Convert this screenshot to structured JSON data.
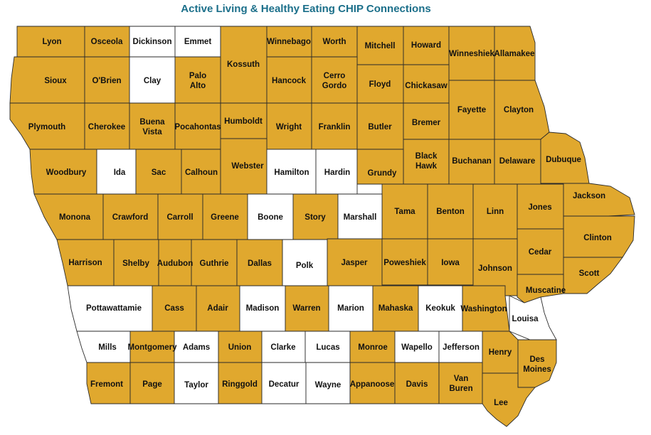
{
  "title": "Active Living & Healthy Eating CHIP Connections",
  "colors": {
    "active": "#E0A82E",
    "inactive": "#FFFFFF",
    "border": "#2A2A2A"
  },
  "counties": [
    {
      "name": "Lyon",
      "active": true
    },
    {
      "name": "Osceola",
      "active": true
    },
    {
      "name": "Dickinson",
      "active": false
    },
    {
      "name": "Emmet",
      "active": false
    },
    {
      "name": "Kossuth",
      "active": true
    },
    {
      "name": "Winnebago",
      "active": true
    },
    {
      "name": "Worth",
      "active": true
    },
    {
      "name": "Mitchell",
      "active": true
    },
    {
      "name": "Howard",
      "active": true
    },
    {
      "name": "Winneshiek",
      "active": true
    },
    {
      "name": "Allamakee",
      "active": true
    },
    {
      "name": "Sioux",
      "active": true
    },
    {
      "name": "O'Brien",
      "active": true
    },
    {
      "name": "Clay",
      "active": false
    },
    {
      "name": "Palo Alto",
      "active": true
    },
    {
      "name": "Hancock",
      "active": true
    },
    {
      "name": "Cerro Gordo",
      "active": true
    },
    {
      "name": "Floyd",
      "active": true
    },
    {
      "name": "Chickasaw",
      "active": true
    },
    {
      "name": "Fayette",
      "active": true
    },
    {
      "name": "Clayton",
      "active": true
    },
    {
      "name": "Plymouth",
      "active": true
    },
    {
      "name": "Cherokee",
      "active": true
    },
    {
      "name": "Buena Vista",
      "active": true
    },
    {
      "name": "Pocahontas",
      "active": true
    },
    {
      "name": "Humboldt",
      "active": true
    },
    {
      "name": "Wright",
      "active": true
    },
    {
      "name": "Franklin",
      "active": true
    },
    {
      "name": "Butler",
      "active": true
    },
    {
      "name": "Bremer",
      "active": true
    },
    {
      "name": "Black Hawk",
      "active": true
    },
    {
      "name": "Buchanan",
      "active": true
    },
    {
      "name": "Delaware",
      "active": true
    },
    {
      "name": "Dubuque",
      "active": true
    },
    {
      "name": "Woodbury",
      "active": true
    },
    {
      "name": "Ida",
      "active": false
    },
    {
      "name": "Sac",
      "active": true
    },
    {
      "name": "Calhoun",
      "active": true
    },
    {
      "name": "Webster",
      "active": true
    },
    {
      "name": "Hamilton",
      "active": false
    },
    {
      "name": "Hardin",
      "active": false
    },
    {
      "name": "Grundy",
      "active": true
    },
    {
      "name": "Tama",
      "active": true
    },
    {
      "name": "Benton",
      "active": true
    },
    {
      "name": "Linn",
      "active": true
    },
    {
      "name": "Jones",
      "active": true
    },
    {
      "name": "Jackson",
      "active": true
    },
    {
      "name": "Clinton",
      "active": true
    },
    {
      "name": "Monona",
      "active": true
    },
    {
      "name": "Crawford",
      "active": true
    },
    {
      "name": "Carroll",
      "active": true
    },
    {
      "name": "Greene",
      "active": true
    },
    {
      "name": "Boone",
      "active": false
    },
    {
      "name": "Story",
      "active": true
    },
    {
      "name": "Marshall",
      "active": false
    },
    {
      "name": "Cedar",
      "active": true
    },
    {
      "name": "Scott",
      "active": true
    },
    {
      "name": "Harrison",
      "active": true
    },
    {
      "name": "Shelby",
      "active": true
    },
    {
      "name": "Audubon",
      "active": true
    },
    {
      "name": "Guthrie",
      "active": true
    },
    {
      "name": "Dallas",
      "active": true
    },
    {
      "name": "Polk",
      "active": false
    },
    {
      "name": "Jasper",
      "active": true
    },
    {
      "name": "Poweshiek",
      "active": true
    },
    {
      "name": "Iowa",
      "active": true
    },
    {
      "name": "Johnson",
      "active": true
    },
    {
      "name": "Muscatine",
      "active": true
    },
    {
      "name": "Pottawattamie",
      "active": false
    },
    {
      "name": "Cass",
      "active": true
    },
    {
      "name": "Adair",
      "active": true
    },
    {
      "name": "Madison",
      "active": false
    },
    {
      "name": "Warren",
      "active": true
    },
    {
      "name": "Marion",
      "active": false
    },
    {
      "name": "Mahaska",
      "active": true
    },
    {
      "name": "Keokuk",
      "active": false
    },
    {
      "name": "Washington",
      "active": true
    },
    {
      "name": "Louisa",
      "active": false
    },
    {
      "name": "Mills",
      "active": false
    },
    {
      "name": "Montgomery",
      "active": true
    },
    {
      "name": "Adams",
      "active": false
    },
    {
      "name": "Union",
      "active": true
    },
    {
      "name": "Clarke",
      "active": false
    },
    {
      "name": "Lucas",
      "active": false
    },
    {
      "name": "Monroe",
      "active": true
    },
    {
      "name": "Wapello",
      "active": false
    },
    {
      "name": "Jefferson",
      "active": false
    },
    {
      "name": "Henry",
      "active": true
    },
    {
      "name": "Des Moines",
      "active": true
    },
    {
      "name": "Fremont",
      "active": true
    },
    {
      "name": "Page",
      "active": true
    },
    {
      "name": "Taylor",
      "active": false
    },
    {
      "name": "Ringgold",
      "active": true
    },
    {
      "name": "Decatur",
      "active": false
    },
    {
      "name": "Wayne",
      "active": false
    },
    {
      "name": "Appanoose",
      "active": true
    },
    {
      "name": "Davis",
      "active": true
    },
    {
      "name": "Van Buren",
      "active": true
    },
    {
      "name": "Lee",
      "active": true
    }
  ]
}
